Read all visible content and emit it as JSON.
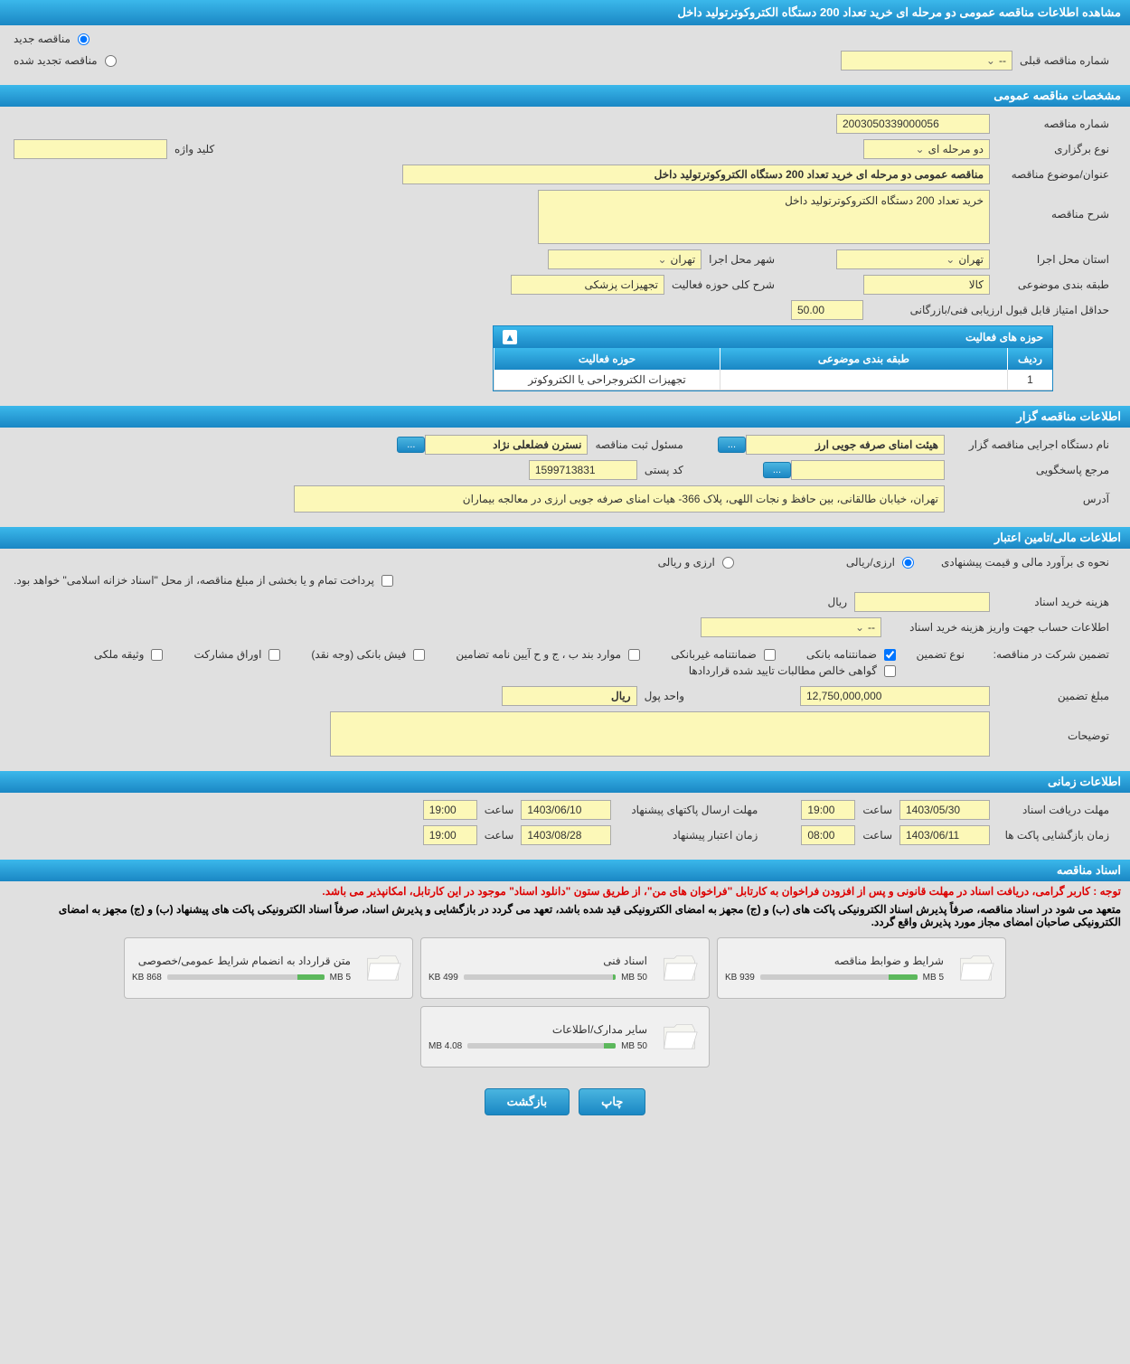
{
  "header": {
    "title": "مشاهده اطلاعات مناقصه عمومی دو مرحله ای خرید تعداد 200 دستگاه الکتروکوترتولید داخل"
  },
  "top_radios": {
    "new_tender": "مناقصه جدید",
    "renewed_tender": "مناقصه تجدید شده",
    "prev_tender_label": "شماره مناقصه قبلی",
    "prev_tender_value": "--"
  },
  "sections": {
    "general": "مشخصات مناقصه عمومی",
    "organizer": "اطلاعات مناقصه گزار",
    "financial": "اطلاعات مالی/تامین اعتبار",
    "timing": "اطلاعات زمانی",
    "documents": "اسناد مناقصه"
  },
  "general": {
    "tender_number_label": "شماره مناقصه",
    "tender_number": "2003050339000056",
    "type_label": "نوع برگزاری",
    "type_value": "دو مرحله ای",
    "keyword_label": "کلید واژه",
    "keyword_value": "",
    "title_label": "عنوان/موضوع مناقصه",
    "title_value": "مناقصه عمومی دو مرحله ای خرید تعداد 200 دستگاه الکتروکوترتولید داخل",
    "desc_label": "شرح مناقصه",
    "desc_value": "خرید تعداد 200 دستگاه الکتروکوترتولید داخل",
    "province_label": "استان محل اجرا",
    "province_value": "تهران",
    "city_label": "شهر محل اجرا",
    "city_value": "تهران",
    "category_label": "طبقه بندی موضوعی",
    "category_value": "کالا",
    "activity_desc_label": "شرح کلی حوزه فعالیت",
    "activity_desc_value": "تجهیزات پزشکی",
    "min_score_label": "حداقل امتیاز قابل قبول ارزیابی فنی/بازرگانی",
    "min_score_value": "50.00"
  },
  "activity_table": {
    "title": "حوزه های فعالیت",
    "col_row": "ردیف",
    "col_category": "طبقه بندی موضوعی",
    "col_activity": "حوزه فعالیت",
    "rows": [
      {
        "n": "1",
        "category": "",
        "activity": "تجهیزات الکتروجراحی یا الکتروکوتر"
      }
    ]
  },
  "organizer": {
    "exec_label": "نام دستگاه اجرایی مناقصه گزار",
    "exec_value": "هیئت امنای صرفه جویی ارز",
    "responsible_label": "مسئول ثبت مناقصه",
    "responsible_value": "نسترن فضلعلی نژاد",
    "contact_label": "مرجع پاسخگویی",
    "contact_value": "",
    "postal_label": "کد پستی",
    "postal_value": "1599713831",
    "address_label": "آدرس",
    "address_value": "تهران، خیابان طالقانی، بین حافظ و نجات اللهی، پلاک 366- هیات امنای صرفه جویی ارزی در معالجه بیماران"
  },
  "financial": {
    "estimate_label": "نحوه ی برآورد مالی و قیمت پیشنهادی",
    "currency_rial": "ارزی/ریالی",
    "currency_foreign": "ارزی و ریالی",
    "payment_note": "پرداخت تمام و یا بخشی از مبلغ مناقصه، از محل \"اسناد خزانه اسلامی\" خواهد بود.",
    "doc_cost_label": "هزینه خرید اسناد",
    "doc_cost_value": "",
    "doc_cost_unit": "ریال",
    "account_label": "اطلاعات حساب جهت واریز هزینه خرید اسناد",
    "account_value": "--",
    "guarantee_label": "تضمین شرکت در مناقصه:",
    "guarantee_type_label": "نوع تضمین",
    "guarantee_types": {
      "bank_guarantee": "ضمانتنامه بانکی",
      "nonbank_guarantee": "ضمانتنامه غیربانکی",
      "bylaw_items": "موارد بند ب ، ج و ح آیین نامه تضامین",
      "bank_receipt": "فیش بانکی (وجه نقد)",
      "bonds": "اوراق مشارکت",
      "property": "وثیقه ملکی",
      "receivables": "گواهی خالص مطالبات تایید شده قراردادها"
    },
    "guarantee_amount_label": "مبلغ تضمین",
    "guarantee_amount": "12,750,000,000",
    "currency_unit_label": "واحد پول",
    "currency_unit": "ریال",
    "notes_label": "توضیحات",
    "notes_value": ""
  },
  "timing": {
    "doc_deadline_label": "مهلت دریافت اسناد",
    "doc_deadline_date": "1403/05/30",
    "time_label": "ساعت",
    "doc_deadline_time": "19:00",
    "packet_deadline_label": "مهلت ارسال پاکتهای پیشنهاد",
    "packet_deadline_date": "1403/06/10",
    "packet_deadline_time": "19:00",
    "opening_label": "زمان بازگشایی پاکت ها",
    "opening_date": "1403/06/11",
    "opening_time": "08:00",
    "validity_label": "زمان اعتبار پیشنهاد",
    "validity_date": "1403/08/28",
    "validity_time": "19:00"
  },
  "documents": {
    "notice1": "توجه : کاربر گرامی، دریافت اسناد در مهلت قانونی و پس از افزودن فراخوان به کارتابل \"فراخوان های من\"، از طریق ستون \"دانلود اسناد\" موجود در این کارتابل، امکانپذیر می باشد.",
    "notice2": "متعهد می شود در اسناد مناقصه، صرفاً پذیرش اسناد الکترونیکی پاکت های (ب) و (ج) مجهز به امضای الکترونیکی قید شده باشد، تعهد می گردد در بازگشایی و پذیرش اسناد، صرفاً اسناد الکترونیکی پاکت های پیشنهاد (ب) و (ج) مجهز به امضای الکترونیکی صاحبان امضای مجاز مورد پذیرش واقع گردد.",
    "files": [
      {
        "name": "شرایط و ضوابط مناقصه",
        "size_used": "939 KB",
        "size_total": "5 MB",
        "progress": 18
      },
      {
        "name": "اسناد فنی",
        "size_used": "499 KB",
        "size_total": "50 MB",
        "progress": 2
      },
      {
        "name": "متن قرارداد به انضمام شرایط عمومی/خصوصی",
        "size_used": "868 KB",
        "size_total": "5 MB",
        "progress": 17
      },
      {
        "name": "سایر مدارک/اطلاعات",
        "size_used": "4.08 MB",
        "size_total": "50 MB",
        "progress": 8
      }
    ]
  },
  "footer": {
    "print": "چاپ",
    "back": "بازگشت"
  },
  "colors": {
    "header_bg": "#1a87c4",
    "field_bg": "#fcf8b8",
    "page_bg": "#e0e0e0"
  }
}
